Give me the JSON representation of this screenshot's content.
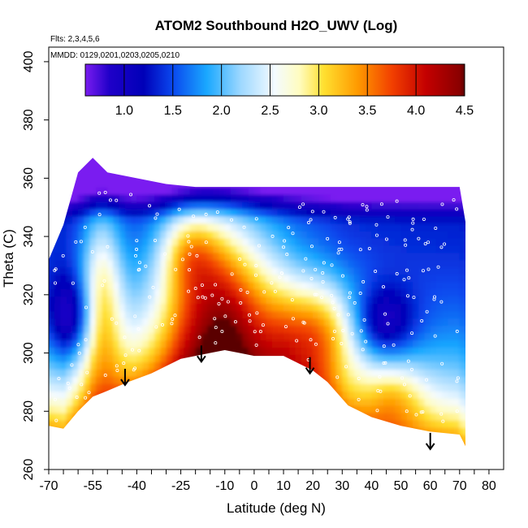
{
  "chart_data": {
    "type": "heatmap",
    "title": "ATOM2 Southbound H2O_UWV (Log)",
    "annotations": {
      "flights": "Flts: 2,3,4,5,6",
      "dates": "MMDD: 0129,0201,0203,0205,0210"
    },
    "xlabel": "Latitude (deg N)",
    "ylabel": "Theta (C)",
    "xlim": [
      -70,
      85
    ],
    "ylim": [
      260,
      405
    ],
    "x_ticks_major": [
      -70,
      -55,
      -40,
      -25,
      -10,
      0,
      10,
      20,
      30,
      40,
      50,
      60,
      70,
      80
    ],
    "x_ticks_all": [
      -70,
      -65,
      -60,
      -55,
      -50,
      -45,
      -40,
      -35,
      -30,
      -25,
      -20,
      -15,
      -10,
      -5,
      0,
      5,
      10,
      15,
      20,
      25,
      30,
      35,
      40,
      45,
      50,
      55,
      60,
      65,
      70,
      75,
      80
    ],
    "y_ticks": [
      260,
      280,
      300,
      320,
      340,
      360,
      380,
      400
    ],
    "colorbar": {
      "range": [
        0.6,
        4.5
      ],
      "ticks": [
        1.0,
        1.5,
        2.0,
        2.5,
        3.0,
        3.5,
        4.0,
        4.5
      ],
      "stops": [
        {
          "v": 0.6,
          "color": "#7a1cf0"
        },
        {
          "v": 0.85,
          "color": "#1f00c8"
        },
        {
          "v": 1.2,
          "color": "#0000b8"
        },
        {
          "v": 1.5,
          "color": "#0a48ee"
        },
        {
          "v": 1.85,
          "color": "#1aa8ff"
        },
        {
          "v": 2.2,
          "color": "#9ed8ff"
        },
        {
          "v": 2.55,
          "color": "#f4fbff"
        },
        {
          "v": 2.8,
          "color": "#fffcc0"
        },
        {
          "v": 3.05,
          "color": "#ffe030"
        },
        {
          "v": 3.4,
          "color": "#ff9a00"
        },
        {
          "v": 3.75,
          "color": "#f24000"
        },
        {
          "v": 4.1,
          "color": "#c40000"
        },
        {
          "v": 4.45,
          "color": "#8a0000"
        },
        {
          "v": 4.5,
          "color": "#5a0000"
        }
      ]
    },
    "data_extent": {
      "x_range": [
        -70,
        72
      ],
      "upper_boundary": [
        [
          -70,
          332
        ],
        [
          -65,
          344
        ],
        [
          -60,
          362
        ],
        [
          -55,
          367
        ],
        [
          -50,
          362
        ],
        [
          -40,
          360
        ],
        [
          -30,
          358
        ],
        [
          -20,
          357
        ],
        [
          -10,
          357
        ],
        [
          0,
          357
        ],
        [
          10,
          357
        ],
        [
          20,
          357
        ],
        [
          30,
          357
        ],
        [
          40,
          357
        ],
        [
          50,
          357
        ],
        [
          60,
          357
        ],
        [
          70,
          357
        ],
        [
          72,
          345
        ]
      ],
      "lower_boundary": [
        [
          -70,
          275
        ],
        [
          -65,
          274
        ],
        [
          -60,
          280
        ],
        [
          -55,
          285
        ],
        [
          -50,
          287
        ],
        [
          -43,
          290
        ],
        [
          -35,
          293
        ],
        [
          -25,
          298
        ],
        [
          -15,
          300
        ],
        [
          -10,
          301
        ],
        [
          -5,
          300
        ],
        [
          0,
          299
        ],
        [
          10,
          299
        ],
        [
          20,
          294
        ],
        [
          25,
          290
        ],
        [
          32,
          282
        ],
        [
          40,
          278
        ],
        [
          50,
          275
        ],
        [
          60,
          273
        ],
        [
          70,
          272
        ],
        [
          72,
          268
        ]
      ]
    },
    "features": [
      {
        "name": "tropical moist plume (red core)",
        "lat_center": -10,
        "theta_range": [
          298,
          348
        ],
        "max_value": 4.4
      },
      {
        "name": "southern midlatitude moist tongue",
        "lat_center": -50,
        "theta_range": [
          288,
          338
        ],
        "max_value": 3.8
      },
      {
        "name": "northern midlatitude moist region",
        "lat_center": 25,
        "theta_range": [
          294,
          330
        ],
        "max_value": 3.9
      },
      {
        "name": "dry upper layer",
        "theta_range": [
          345,
          367
        ],
        "value": 0.8
      }
    ],
    "arrows": [
      {
        "lat": -44,
        "theta_tip": 289
      },
      {
        "lat": -18,
        "theta_tip": 297
      },
      {
        "lat": 19,
        "theta_tip": 293
      },
      {
        "lat": 60,
        "theta_tip": 267
      }
    ],
    "grid": false,
    "legend": "colorbar top, inside plot"
  }
}
